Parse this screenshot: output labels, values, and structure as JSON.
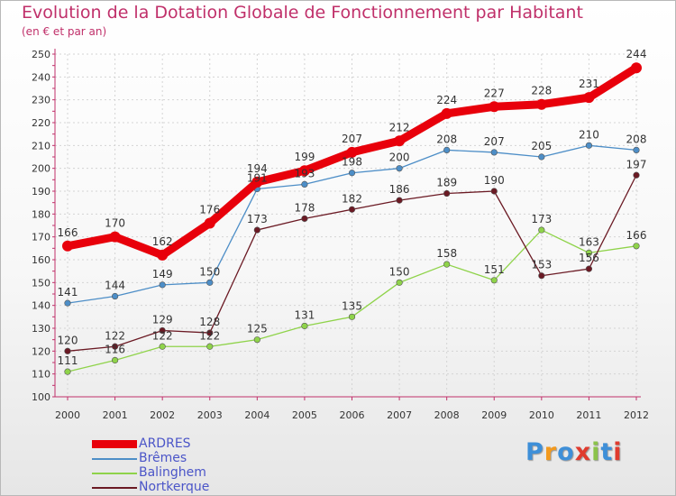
{
  "chart_data": {
    "type": "line",
    "title": "Evolution de la Dotation Globale de Fonctionnement par Habitant",
    "subtitle": "(en € et par an)",
    "xlabel": "",
    "ylabel": "",
    "categories": [
      "2000",
      "2001",
      "2002",
      "2003",
      "2004",
      "2005",
      "2006",
      "2007",
      "2008",
      "2009",
      "2010",
      "2011",
      "2012"
    ],
    "ylim": [
      100,
      250
    ],
    "yticks": [
      100,
      110,
      120,
      130,
      140,
      150,
      160,
      170,
      180,
      190,
      200,
      210,
      220,
      230,
      240,
      250
    ],
    "grid": true,
    "legend_position": "bottom-left",
    "series": [
      {
        "name": "ARDRES",
        "color": "#e8000b",
        "values": [
          166,
          170,
          162,
          176,
          194,
          199,
          207,
          212,
          224,
          227,
          228,
          231,
          244
        ]
      },
      {
        "name": "Brêmes",
        "color": "#4d8ec7",
        "values": [
          141,
          144,
          149,
          150,
          191,
          193,
          198,
          200,
          208,
          207,
          205,
          210,
          208
        ]
      },
      {
        "name": "Balinghem",
        "color": "#8fd34a",
        "values": [
          111,
          116,
          122,
          122,
          125,
          131,
          135,
          150,
          158,
          151,
          173,
          163,
          166
        ]
      },
      {
        "name": "Nortkerque",
        "color": "#6b1a24",
        "values": [
          120,
          122,
          129,
          128,
          173,
          178,
          182,
          186,
          189,
          190,
          153,
          156,
          197
        ]
      }
    ]
  },
  "logo": {
    "text": "Proxiti",
    "letter_colors": [
      "#3e8fd8",
      "#f39a1e",
      "#3e8fd8",
      "#e03b2e",
      "#8bc34a",
      "#3e8fd8",
      "#e03b2e"
    ]
  }
}
